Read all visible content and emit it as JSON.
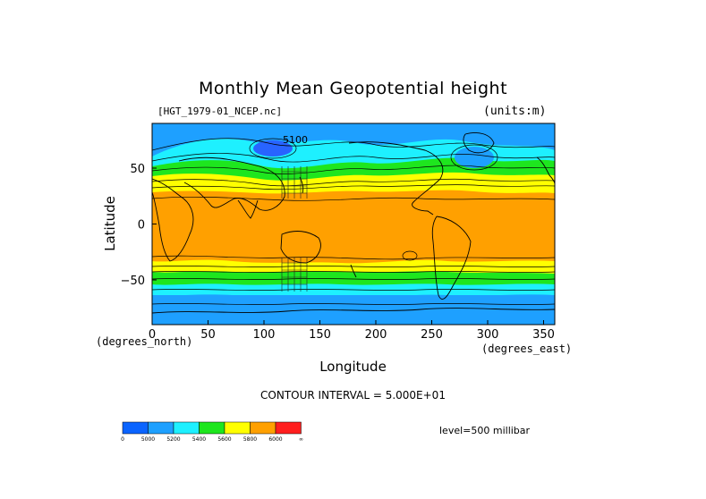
{
  "title": "Monthly Mean Geopotential height",
  "source": "[HGT_1979-01_NCEP.nc]",
  "units": "(units:m)",
  "xlabel": "Longitude",
  "xunits": "(degrees_east)",
  "ylabel": "Latitude",
  "yunits": "(degrees_north)",
  "contour_interval": "CONTOUR INTERVAL = 5.000E+01",
  "level": "level=500 millibar",
  "contour_label": "5100",
  "x_ticks": [
    "0",
    "50",
    "100",
    "150",
    "200",
    "250",
    "300",
    "350"
  ],
  "y_ticks": [
    "50",
    "0",
    "−50"
  ],
  "colorbar": {
    "labels": [
      "0",
      "5000",
      "5200",
      "5400",
      "5600",
      "5800",
      "6000",
      "∞"
    ],
    "colors": [
      "#0a64ff",
      "#1ea0ff",
      "#1ef0ff",
      "#1ee61e",
      "#ffff00",
      "#ffa000",
      "#ff1e1e"
    ]
  },
  "palette": {
    "deep_blue": "#2864ff",
    "mid_blue": "#1ea0ff",
    "cyan": "#1ef0ff",
    "green": "#1ee61e",
    "yellow": "#ffff00",
    "orange": "#ffa000"
  }
}
